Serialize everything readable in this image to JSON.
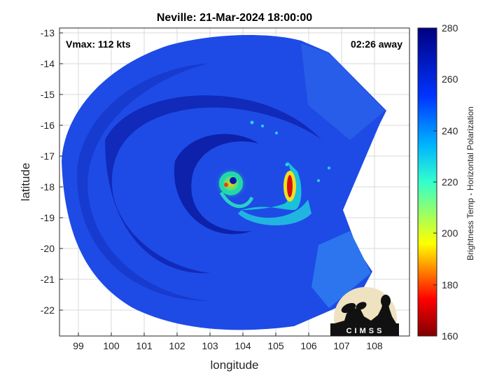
{
  "title": "Neville: 21-Mar-2024 18:00:00",
  "vmax_text": "Vmax: 112 kts",
  "away_text": "02:26 away",
  "xlabel": "longitude",
  "ylabel": "latitude",
  "colorbar_label": "Brightness Temp - Horizontal Polarization",
  "logo_text": "CIMSS",
  "x_ticks": [
    "99",
    "100",
    "101",
    "102",
    "103",
    "104",
    "105",
    "106",
    "107",
    "108"
  ],
  "y_ticks": [
    "-13",
    "-14",
    "-15",
    "-16",
    "-17",
    "-18",
    "-19",
    "-20",
    "-21",
    "-22"
  ],
  "colorbar_ticks": [
    "160",
    "180",
    "200",
    "220",
    "240",
    "260",
    "280"
  ],
  "colors": {
    "background_blue": "#1a3fe0",
    "deep_blue": "#0a1aa8",
    "cyan": "#19b7e6",
    "yellow": "#ffe000",
    "red": "#d40000"
  }
}
